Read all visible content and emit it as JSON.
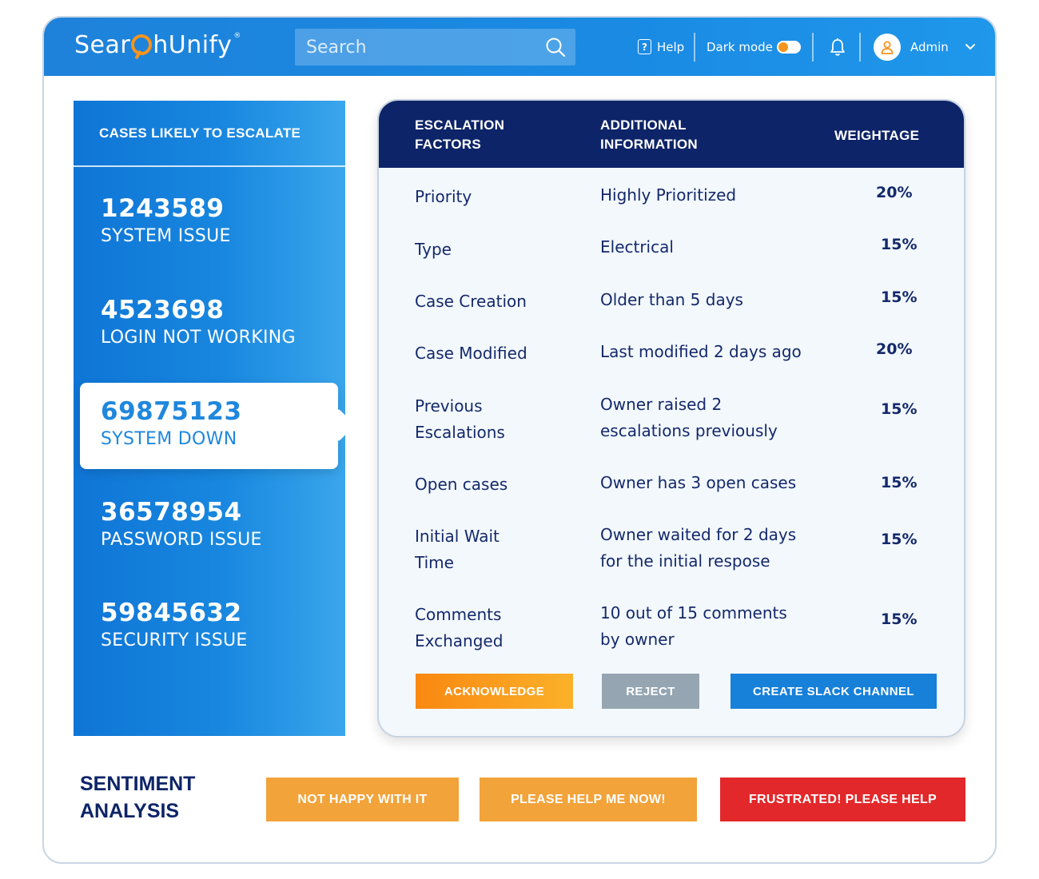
{
  "header": {
    "logo_text_a": "Sear",
    "logo_text_b": "hUnify",
    "logo_tm": "®",
    "search_placeholder": "Search",
    "help_label": "Help",
    "dark_mode_label": "Dark mode",
    "dark_mode_on": true,
    "user_label": "Admin"
  },
  "cases": {
    "heading": "CASES LIKELY TO ESCALATE",
    "items": [
      {
        "number": "1243589",
        "title": "SYSTEM ISSUE"
      },
      {
        "number": "4523698",
        "title": "LOGIN NOT WORKING"
      },
      {
        "number": "69875123",
        "title": "SYSTEM DOWN",
        "selected": true
      },
      {
        "number": "36578954",
        "title": "PASSWORD ISSUE"
      },
      {
        "number": "59845632",
        "title": "SECURITY ISSUE"
      }
    ]
  },
  "escalation": {
    "headers": {
      "factors_line1": "ESCALATION",
      "factors_line2": "FACTORS",
      "info_line1": "ADDITIONAL",
      "info_line2": "INFORMATION",
      "weightage": "WEIGHTAGE"
    },
    "rows": [
      {
        "factor_l1": "Priority",
        "factor_l2": "",
        "info_l1": "Highly Prioritized",
        "info_l2": "",
        "weight": "20%"
      },
      {
        "factor_l1": "Type",
        "factor_l2": "",
        "info_l1": "Electrical",
        "info_l2": "",
        "weight": "15%"
      },
      {
        "factor_l1": "Case Creation",
        "factor_l2": "",
        "info_l1": "Older than 5 days",
        "info_l2": "",
        "weight": "15%"
      },
      {
        "factor_l1": "Case Modified",
        "factor_l2": "",
        "info_l1": "Last modified 2 days ago",
        "info_l2": "",
        "weight": "20%"
      },
      {
        "factor_l1": "Previous",
        "factor_l2": "Escalations",
        "info_l1": "Owner raised 2",
        "info_l2": "escalations previously",
        "weight": "15%"
      },
      {
        "factor_l1": "Open cases",
        "factor_l2": "",
        "info_l1": "Owner has 3 open cases",
        "info_l2": "",
        "weight": "15%"
      },
      {
        "factor_l1": "Initial Wait",
        "factor_l2": "Time",
        "info_l1": "Owner waited for 2 days",
        "info_l2": "for the initial respose",
        "weight": "15%"
      },
      {
        "factor_l1": "Comments",
        "factor_l2": "Exchanged",
        "info_l1": "10 out of 15 comments",
        "info_l2": "by owner",
        "weight": "15%"
      }
    ],
    "actions": {
      "acknowledge": "ACKNOWLEDGE",
      "reject": "REJECT",
      "create_slack": "CREATE SLACK CHANNEL"
    }
  },
  "sentiment": {
    "label_line1": "SENTIMENT",
    "label_line2": "ANALYSIS",
    "chips": [
      {
        "text": "NOT HAPPY WITH IT",
        "color": "#f2a33a"
      },
      {
        "text": "PLEASE HELP ME NOW!",
        "color": "#f2a33a"
      },
      {
        "text": "FRUSTRATED! PLEASE HELP",
        "color": "#e2282a"
      }
    ]
  },
  "colors": {
    "brand_blue": "#1a8ae3",
    "navy": "#0e2468",
    "accent_orange": "#f7941d"
  }
}
